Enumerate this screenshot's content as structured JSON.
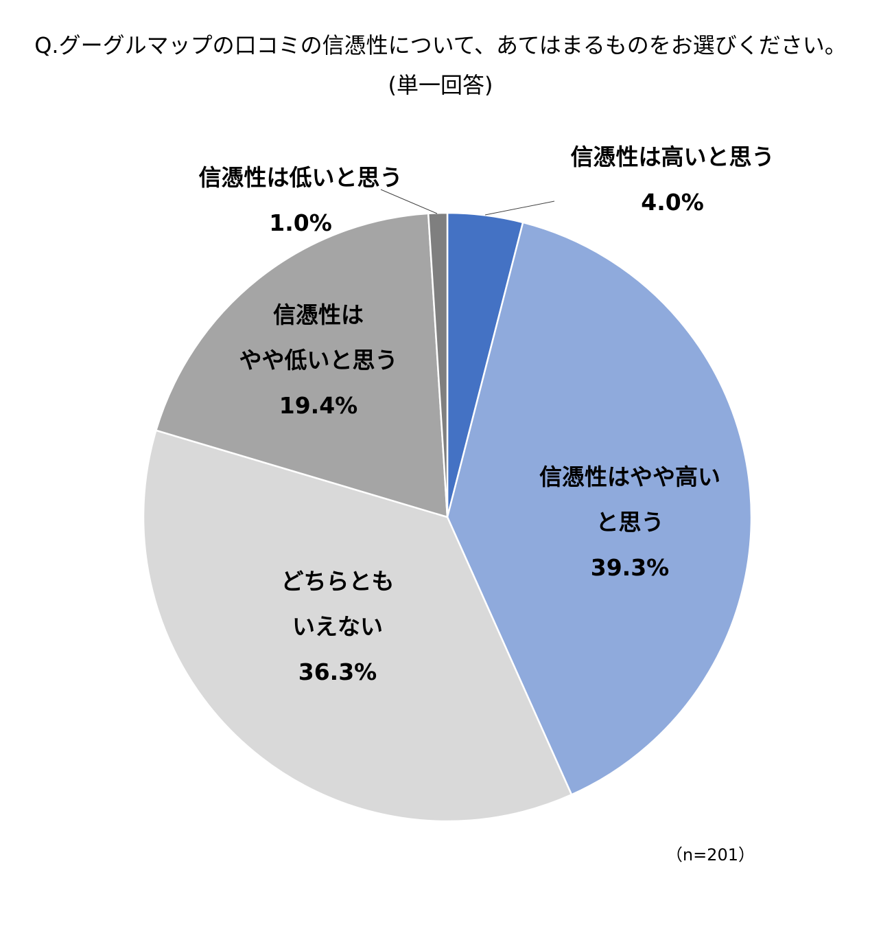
{
  "chart_data": {
    "type": "pie",
    "title": "Q.グーグルマップの口コミの信憑性について、あてはまるものをお選びください。",
    "subtitle": "(単一回答)",
    "note": "（n=201）",
    "slices": [
      {
        "label_lines": [
          "信憑性は高いと思う"
        ],
        "value": 4.0,
        "value_label": "4.0%",
        "color": "#4472C4"
      },
      {
        "label_lines": [
          "信憑性はやや高い",
          "と思う"
        ],
        "value": 39.3,
        "value_label": "39.3%",
        "color": "#8FAADC"
      },
      {
        "label_lines": [
          "どちらとも",
          "いえない"
        ],
        "value": 36.3,
        "value_label": "36.3%",
        "color": "#D9D9D9"
      },
      {
        "label_lines": [
          "信憑性は",
          "やや低いと思う"
        ],
        "value": 19.4,
        "value_label": "19.4%",
        "color": "#A5A5A5"
      },
      {
        "label_lines": [
          "信憑性は低いと思う"
        ],
        "value": 1.0,
        "value_label": "1.0%",
        "color": "#7F7F7F"
      }
    ]
  }
}
